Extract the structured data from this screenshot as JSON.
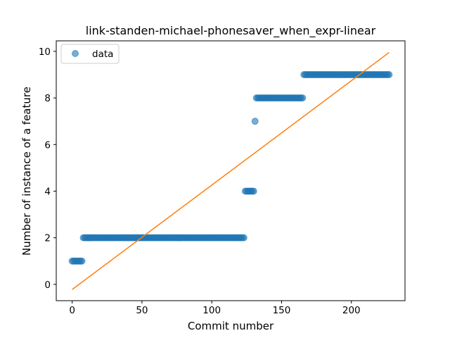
{
  "chart_data": {
    "type": "scatter",
    "title": "link-standen-michael-phonesaver_when_expr-linear",
    "xlabel": "Commit number",
    "ylabel": "Number of instance of a feature",
    "xlim": [
      -11.4,
      238.4
    ],
    "ylim": [
      -0.7,
      10.45
    ],
    "xticks": [
      0,
      50,
      100,
      150,
      200
    ],
    "yticks": [
      0,
      2,
      4,
      6,
      8,
      10
    ],
    "grid": false,
    "legend": {
      "placement": "top-left",
      "entries": [
        "data"
      ]
    },
    "colors": {
      "data": "#1f77b4",
      "fit": "#ff7f0e"
    },
    "series": [
      {
        "name": "data",
        "kind": "scatter",
        "segments": [
          {
            "x_start": 0,
            "x_end": 7,
            "y": 1
          },
          {
            "x_start": 8,
            "x_end": 123,
            "y": 2
          },
          {
            "x_start": 124,
            "x_end": 130,
            "y": 4
          },
          {
            "x_start": 131,
            "x_end": 131,
            "y": 7
          },
          {
            "x_start": 132,
            "x_end": 165,
            "y": 8
          },
          {
            "x_start": 166,
            "x_end": 227,
            "y": 9
          }
        ]
      },
      {
        "kind": "line",
        "x": [
          0,
          227
        ],
        "y": [
          -0.22,
          9.95
        ]
      }
    ]
  }
}
